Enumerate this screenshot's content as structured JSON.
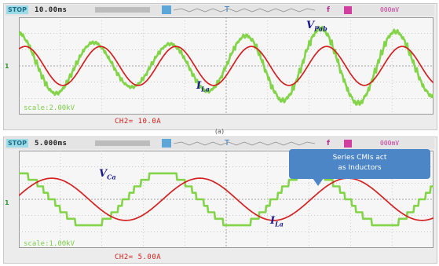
{
  "caption_a": "(a)",
  "colors": {
    "green_trace": "#84d44a",
    "red_trace": "#d42020",
    "grid": "#b0b0b0",
    "label": "#1a1a8c",
    "callout": "#4d86c6"
  },
  "scope_a": {
    "stop_label": "STOP",
    "timebase": "10.00ms",
    "trigger_marker": "T",
    "channel_marker": "f",
    "trigger_level": "000mV",
    "ground_marker": "1",
    "ch1_scale_text": "scale:2.00kV",
    "ch2_scale_text": "CH2= 10.0A",
    "label_v": "V",
    "label_v_sub": "Pab",
    "label_i": "I",
    "label_i_sub": "La"
  },
  "scope_b": {
    "stop_label": "STOP",
    "timebase": "5.000ms",
    "trigger_marker": "T",
    "channel_marker": "f",
    "trigger_level": "000mV",
    "ground_marker": "1",
    "ch1_scale_text": "scale:1.00kV",
    "ch2_scale_text": "CH2= 5.00A",
    "label_v": "V",
    "label_v_sub": "Ca",
    "label_i": "I",
    "label_i_sub": "La",
    "callout_line1": "Series CMIs act",
    "callout_line2": "as Inductors"
  },
  "chart_data": [
    {
      "type": "line",
      "panel": "a",
      "grid": true,
      "x": {
        "unit": "ms",
        "div": 10,
        "divisions": 10
      },
      "series": [
        {
          "name": "VPab",
          "shape": "staircase-sine",
          "cycles": 5.5,
          "amplitude_div": 2.3,
          "phase_deg": 90,
          "modulated": true
        },
        {
          "name": "ILa",
          "shape": "sine",
          "cycles": 5.5,
          "amplitude_div": 1.2,
          "phase_deg": 60,
          "modulated": false
        }
      ]
    },
    {
      "type": "line",
      "panel": "b",
      "grid": true,
      "x": {
        "unit": "ms",
        "div": 5,
        "divisions": 10
      },
      "series": [
        {
          "name": "VCa",
          "shape": "staircase",
          "cycles": 2.8,
          "amplitude_div": 1.6,
          "phase_deg": 100,
          "steps": 4
        },
        {
          "name": "ILa",
          "shape": "sine",
          "cycles": 2.8,
          "amplitude_div": 1.3,
          "phase_deg": 10,
          "modulated": false
        }
      ]
    }
  ]
}
